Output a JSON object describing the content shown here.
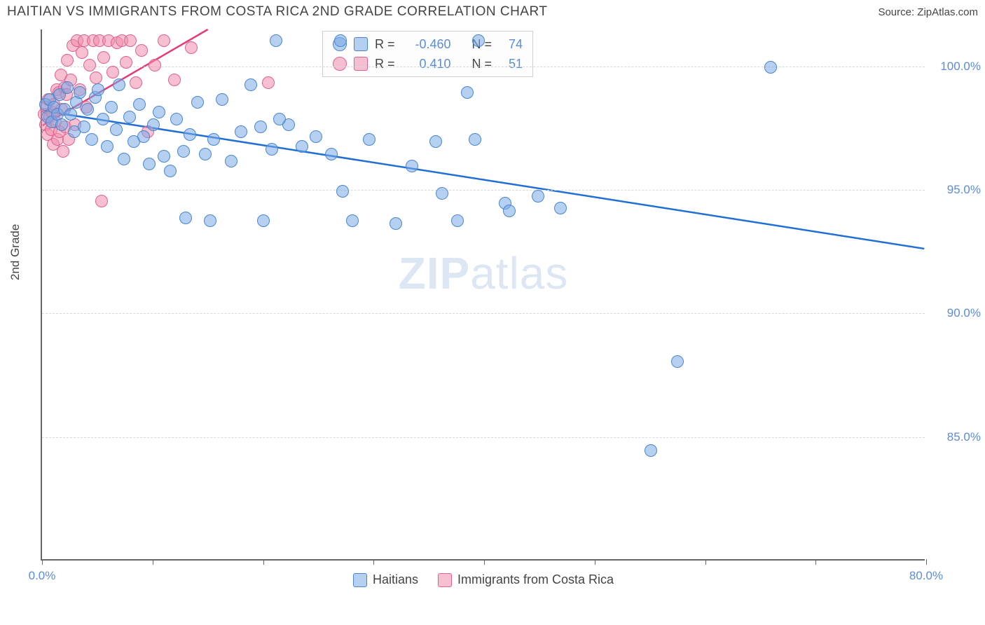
{
  "header": {
    "title": "HAITIAN VS IMMIGRANTS FROM COSTA RICA 2ND GRADE CORRELATION CHART",
    "source": "Source: ZipAtlas.com"
  },
  "axes": {
    "ylabel": "2nd Grade",
    "xlim": [
      0,
      80
    ],
    "ylim": [
      80,
      101.5
    ],
    "xticks": [
      0,
      10,
      20,
      30,
      40,
      50,
      60,
      70,
      80
    ],
    "xtick_labels": {
      "0": "0.0%",
      "80": "80.0%"
    },
    "yticks": [
      85,
      90,
      95,
      100
    ],
    "ytick_labels": [
      "85.0%",
      "90.0%",
      "95.0%",
      "100.0%"
    ],
    "grid_color": "#d8d8d8"
  },
  "watermark": {
    "zip": "ZIP",
    "atlas": "atlas"
  },
  "series": {
    "haitians": {
      "label": "Haitians",
      "fill": "rgba(120,170,230,0.55)",
      "stroke": "#4a85d0",
      "marker_radius": 9,
      "line_color": "#1f6fd4",
      "line_width": 2.5,
      "regression": {
        "x1": 0,
        "y1": 98.2,
        "x2": 80,
        "y2": 92.6
      },
      "R": "-0.460",
      "N": "74",
      "points": [
        [
          0.3,
          98.4
        ],
        [
          0.5,
          97.9
        ],
        [
          0.7,
          98.6
        ],
        [
          0.9,
          97.7
        ],
        [
          1.1,
          98.3
        ],
        [
          1.4,
          98.0
        ],
        [
          1.6,
          98.8
        ],
        [
          1.8,
          97.6
        ],
        [
          2.0,
          98.2
        ],
        [
          2.3,
          99.1
        ],
        [
          2.6,
          98.0
        ],
        [
          2.9,
          97.3
        ],
        [
          3.1,
          98.5
        ],
        [
          3.4,
          98.9
        ],
        [
          3.8,
          97.5
        ],
        [
          4.1,
          98.2
        ],
        [
          4.5,
          97.0
        ],
        [
          4.8,
          98.7
        ],
        [
          5.1,
          99.0
        ],
        [
          5.5,
          97.8
        ],
        [
          5.9,
          96.7
        ],
        [
          6.3,
          98.3
        ],
        [
          6.7,
          97.4
        ],
        [
          7.0,
          99.2
        ],
        [
          7.4,
          96.2
        ],
        [
          7.9,
          97.9
        ],
        [
          8.3,
          96.9
        ],
        [
          8.8,
          98.4
        ],
        [
          9.2,
          97.1
        ],
        [
          9.7,
          96.0
        ],
        [
          10.1,
          97.6
        ],
        [
          10.6,
          98.1
        ],
        [
          11.0,
          96.3
        ],
        [
          11.6,
          95.7
        ],
        [
          12.2,
          97.8
        ],
        [
          12.8,
          96.5
        ],
        [
          13.4,
          97.2
        ],
        [
          14.1,
          98.5
        ],
        [
          14.8,
          96.4
        ],
        [
          15.5,
          97.0
        ],
        [
          15.2,
          93.7
        ],
        [
          16.3,
          98.6
        ],
        [
          17.1,
          96.1
        ],
        [
          13.0,
          93.8
        ],
        [
          18.0,
          97.3
        ],
        [
          18.9,
          99.2
        ],
        [
          19.8,
          97.5
        ],
        [
          20.8,
          96.6
        ],
        [
          20.0,
          93.7
        ],
        [
          21.2,
          101.0
        ],
        [
          22.3,
          97.6
        ],
        [
          23.5,
          96.7
        ],
        [
          21.5,
          97.8
        ],
        [
          24.8,
          97.1
        ],
        [
          26.2,
          96.4
        ],
        [
          27.2,
          94.9
        ],
        [
          28.1,
          93.7
        ],
        [
          29.6,
          97.0
        ],
        [
          32.0,
          93.6
        ],
        [
          33.5,
          95.9
        ],
        [
          35.6,
          96.9
        ],
        [
          36.2,
          94.8
        ],
        [
          37.6,
          93.7
        ],
        [
          38.5,
          98.9
        ],
        [
          39.2,
          97.0
        ],
        [
          39.5,
          101.0
        ],
        [
          41.9,
          94.4
        ],
        [
          42.3,
          94.1
        ],
        [
          44.9,
          94.7
        ],
        [
          46.9,
          94.2
        ],
        [
          55.1,
          84.4
        ],
        [
          57.5,
          88.0
        ],
        [
          65.9,
          99.9
        ],
        [
          27.0,
          101.0
        ]
      ]
    },
    "costarica": {
      "label": "Immigrants from Costa Rica",
      "fill": "rgba(240,140,170,0.55)",
      "stroke": "#e06090",
      "marker_radius": 9,
      "line_color": "#e63976",
      "line_width": 2.5,
      "regression": {
        "x1": 0,
        "y1": 97.6,
        "x2": 15,
        "y2": 101.5
      },
      "R": "0.410",
      "N": "51",
      "points": [
        [
          0.2,
          98.0
        ],
        [
          0.3,
          97.6
        ],
        [
          0.4,
          98.3
        ],
        [
          0.5,
          97.2
        ],
        [
          0.6,
          98.6
        ],
        [
          0.7,
          97.9
        ],
        [
          0.8,
          97.4
        ],
        [
          0.9,
          98.1
        ],
        [
          1.0,
          96.8
        ],
        [
          1.1,
          98.4
        ],
        [
          1.2,
          97.7
        ],
        [
          1.3,
          99.0
        ],
        [
          1.4,
          97.0
        ],
        [
          1.5,
          98.9
        ],
        [
          1.6,
          97.3
        ],
        [
          1.7,
          99.6
        ],
        [
          1.8,
          98.2
        ],
        [
          1.9,
          96.5
        ],
        [
          2.0,
          99.1
        ],
        [
          2.1,
          97.5
        ],
        [
          2.2,
          98.8
        ],
        [
          2.3,
          100.2
        ],
        [
          2.4,
          97.0
        ],
        [
          2.6,
          99.4
        ],
        [
          2.8,
          100.8
        ],
        [
          3.0,
          97.6
        ],
        [
          3.2,
          101.0
        ],
        [
          3.4,
          99.0
        ],
        [
          3.6,
          100.5
        ],
        [
          3.8,
          101.0
        ],
        [
          4.0,
          98.3
        ],
        [
          4.3,
          100.0
        ],
        [
          4.6,
          101.0
        ],
        [
          4.9,
          99.5
        ],
        [
          5.2,
          101.0
        ],
        [
          5.4,
          94.5
        ],
        [
          5.6,
          100.3
        ],
        [
          6.0,
          101.0
        ],
        [
          6.4,
          99.7
        ],
        [
          6.8,
          100.9
        ],
        [
          7.2,
          101.0
        ],
        [
          7.6,
          100.1
        ],
        [
          8.0,
          101.0
        ],
        [
          8.5,
          99.3
        ],
        [
          9.0,
          100.6
        ],
        [
          9.6,
          97.3
        ],
        [
          10.2,
          100.0
        ],
        [
          11.0,
          101.0
        ],
        [
          12.0,
          99.4
        ],
        [
          13.5,
          100.7
        ],
        [
          20.5,
          99.3
        ]
      ]
    }
  },
  "stats_box": {
    "r_label": "R =",
    "n_label": "N ="
  },
  "bottom_legend": {
    "items": [
      "haitians",
      "costarica"
    ]
  },
  "colors": {
    "tick_label": "#5b8dd6",
    "axis": "#666666"
  }
}
